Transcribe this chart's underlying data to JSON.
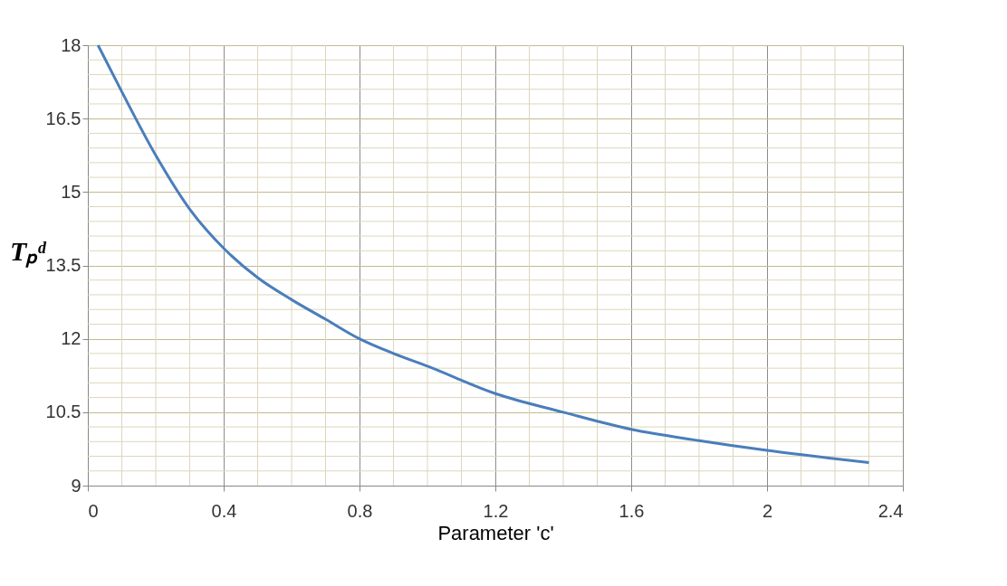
{
  "chart_data": {
    "type": "line",
    "xlabel": "Parameter 'c'",
    "ylabel": "Tₚᵈ",
    "x": [
      0.03,
      0.1,
      0.2,
      0.3,
      0.4,
      0.5,
      0.6,
      0.7,
      0.8,
      0.9,
      1.0,
      1.2,
      1.4,
      1.6,
      1.8,
      2.0,
      2.2,
      2.3
    ],
    "series": [
      {
        "color": "#4a7ebb",
        "values": [
          18.0,
          17.05,
          15.75,
          14.65,
          13.85,
          13.25,
          12.8,
          12.4,
          12.0,
          11.7,
          11.44,
          10.88,
          10.5,
          10.15,
          9.92,
          9.72,
          9.55,
          9.47
        ]
      }
    ],
    "xlim": [
      0,
      2.4
    ],
    "xticks": [
      0,
      0.4,
      0.8,
      1.2,
      1.6,
      2,
      2.4
    ],
    "ylim": [
      9,
      18
    ],
    "yticks": [
      9,
      10.5,
      12,
      13.5,
      15,
      16.5,
      18
    ],
    "grid": true,
    "marker": "none",
    "line_style": "solid"
  }
}
